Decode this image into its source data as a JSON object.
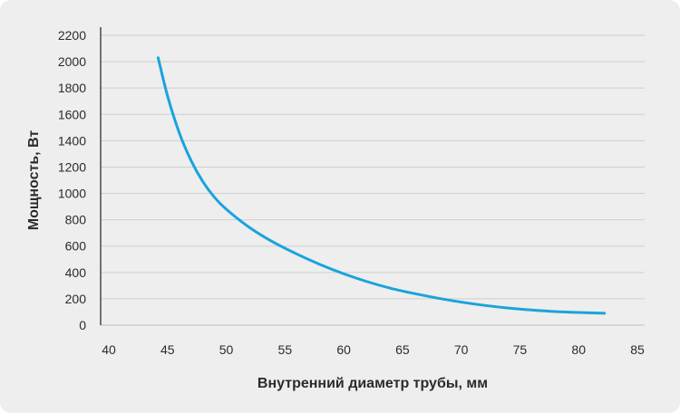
{
  "chart_data": {
    "type": "line",
    "title": "",
    "xlabel": "Внутренний диаметр трубы, мм",
    "ylabel": "Мощность, Вт",
    "xlim": [
      40,
      85
    ],
    "ylim": [
      0,
      2200
    ],
    "x_ticks": [
      "40",
      "45",
      "50",
      "55",
      "60",
      "65",
      "70",
      "75",
      "80",
      "85"
    ],
    "y_ticks": [
      "0",
      "200",
      "400",
      "600",
      "800",
      "1000",
      "1200",
      "1400",
      "1600",
      "1800",
      "2000",
      "2200"
    ],
    "grid": true,
    "series": [
      {
        "color": "#1aa3dc",
        "x": [
          44.2,
          45,
          46,
          47,
          48,
          49,
          50,
          52,
          54,
          56,
          58,
          60,
          62,
          64,
          66,
          68,
          70,
          72,
          74,
          76,
          78,
          80,
          82.2
        ],
        "y": [
          2030,
          1740,
          1460,
          1250,
          1090,
          970,
          880,
          740,
          630,
          540,
          460,
          390,
          330,
          280,
          240,
          205,
          175,
          150,
          130,
          115,
          103,
          96,
          90
        ]
      }
    ]
  }
}
